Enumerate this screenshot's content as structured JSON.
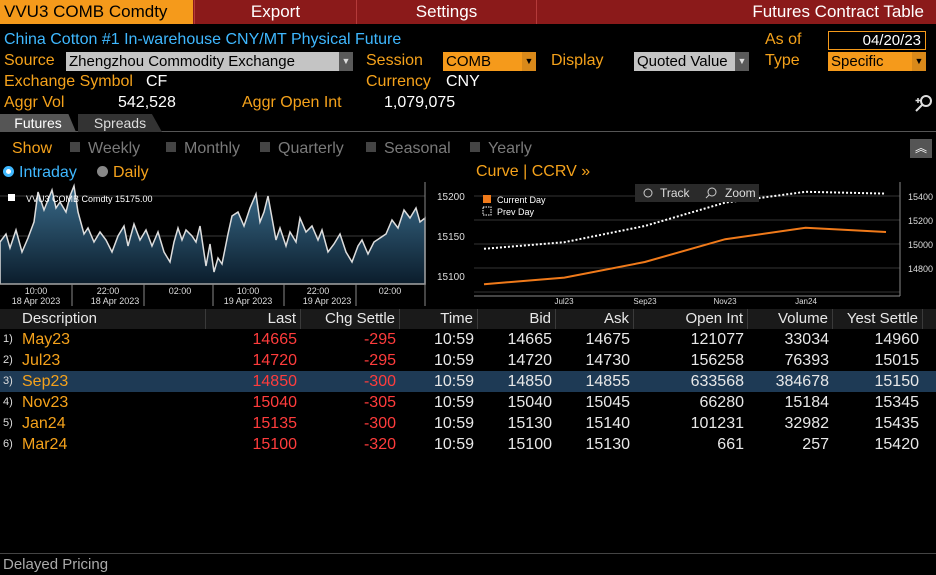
{
  "topbar": {
    "ticker": "VVU3 COMB Comdty",
    "export": "Export",
    "settings": "Settings",
    "title": "Futures Contract Table"
  },
  "header": {
    "description": "China Cotton #1 In-warehouse CNY/MT Physical Future",
    "as_of_label": "As of",
    "as_of_value": "04/20/23",
    "source_label": "Source",
    "source_value": "Zhengzhou Commodity Exchange",
    "session_label": "Session",
    "session_value": "COMB",
    "display_label": "Display",
    "display_value": "Quoted Value",
    "type_label": "Type",
    "type_value": "Specific",
    "exchange_symbol_label": "Exchange Symbol",
    "exchange_symbol_value": "CF",
    "currency_label": "Currency",
    "currency_value": "CNY",
    "aggr_vol_label": "Aggr Vol",
    "aggr_vol_value": "542,528",
    "aggr_oi_label": "Aggr Open Int",
    "aggr_oi_value": "1,079,075"
  },
  "tabs": [
    "Futures",
    "Spreads"
  ],
  "show": {
    "label": "Show",
    "options": [
      "Weekly",
      "Monthly",
      "Quarterly",
      "Seasonal",
      "Yearly"
    ],
    "intraday": "Intraday",
    "daily": "Daily"
  },
  "intraday_chart": {
    "legend": "VVU3 COMB Comdty",
    "legend_value": "15175.00",
    "yticks": [
      "15200",
      "15150",
      "15100"
    ],
    "xticks": [
      {
        "time": "10:00",
        "date": "18 Apr 2023"
      },
      {
        "time": "22:00",
        "date": "18 Apr 2023"
      },
      {
        "time": "02:00",
        "date": ""
      },
      {
        "time": "10:00",
        "date": "19 Apr 2023"
      },
      {
        "time": "22:00",
        "date": "19 Apr 2023"
      },
      {
        "time": "02:00",
        "date": ""
      }
    ]
  },
  "curve": {
    "title": "Curve | CCRV »",
    "track": "Track",
    "zoom": "Zoom",
    "legend_current": "Current Day",
    "legend_prev": "Prev Day",
    "yticks": [
      "15400",
      "15200",
      "15000",
      "14800"
    ],
    "xticks": [
      "Jul23",
      "Sep23",
      "Nov23",
      "Jan24"
    ]
  },
  "chart_data": {
    "type": "line",
    "categories": [
      "May23",
      "Jul23",
      "Sep23",
      "Nov23",
      "Jan24",
      "Mar24"
    ],
    "series": [
      {
        "name": "Current Day",
        "values": [
          14665,
          14720,
          14850,
          15040,
          15135,
          15100
        ],
        "color": "#f07a1a"
      },
      {
        "name": "Prev Day",
        "values": [
          14960,
          15015,
          15150,
          15345,
          15435,
          15420
        ],
        "color": "#ffffff"
      }
    ],
    "ylim": [
      14660,
      15480
    ]
  },
  "table": {
    "columns": [
      "Description",
      "Last",
      "Chg Settle",
      "Time",
      "Bid",
      "Ask",
      "Open Int",
      "Volume",
      "Yest Settle"
    ],
    "rows": [
      {
        "idx": "1)",
        "desc": "May23",
        "last": "14665",
        "chg": "-295",
        "time": "10:59",
        "bid": "14665",
        "ask": "14675",
        "oi": "121077",
        "vol": "33034",
        "yest": "14960"
      },
      {
        "idx": "2)",
        "desc": "Jul23",
        "last": "14720",
        "chg": "-295",
        "time": "10:59",
        "bid": "14720",
        "ask": "14730",
        "oi": "156258",
        "vol": "76393",
        "yest": "15015"
      },
      {
        "idx": "3)",
        "desc": "Sep23",
        "last": "14850",
        "chg": "-300",
        "time": "10:59",
        "bid": "14850",
        "ask": "14855",
        "oi": "633568",
        "vol": "384678",
        "yest": "15150"
      },
      {
        "idx": "4)",
        "desc": "Nov23",
        "last": "15040",
        "chg": "-305",
        "time": "10:59",
        "bid": "15040",
        "ask": "15045",
        "oi": "66280",
        "vol": "15184",
        "yest": "15345"
      },
      {
        "idx": "5)",
        "desc": "Jan24",
        "last": "15135",
        "chg": "-300",
        "time": "10:59",
        "bid": "15130",
        "ask": "15140",
        "oi": "101231",
        "vol": "32982",
        "yest": "15435"
      },
      {
        "idx": "6)",
        "desc": "Mar24",
        "last": "15100",
        "chg": "-320",
        "time": "10:59",
        "bid": "15100",
        "ask": "15130",
        "oi": "661",
        "vol": "257",
        "yest": "15420"
      }
    ]
  },
  "footer": "Delayed Pricing",
  "colors": {
    "accent": "#f59a1b",
    "topbar": "#8b1a1a",
    "negative": "#ff3c3c",
    "selected_row": "#1e3a55"
  }
}
